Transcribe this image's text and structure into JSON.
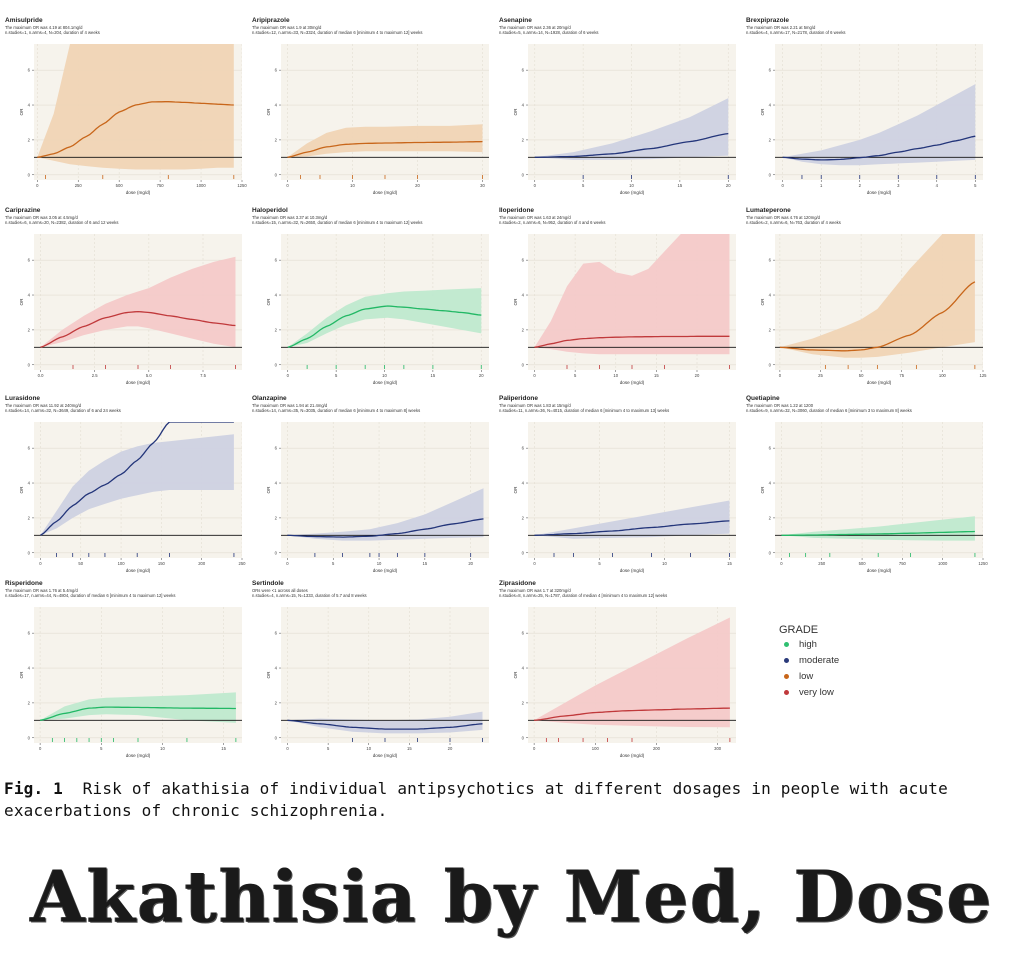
{
  "caption": {
    "fig_no": "Fig. 1",
    "text": "Risk of akathisia of individual antipsychotics at different dosages in people with acute exacerbations of chronic schizophrenia."
  },
  "banner": {
    "text": "Akathisia by Med, Dose"
  },
  "legend": {
    "title": "GRADE",
    "items": [
      {
        "label": "high",
        "color": "#2fbf71"
      },
      {
        "label": "moderate",
        "color": "#2a3a7a"
      },
      {
        "label": "low",
        "color": "#c8661a"
      },
      {
        "label": "very low",
        "color": "#c0393b"
      }
    ]
  },
  "colors": {
    "high": {
      "line": "#22b865",
      "band": "#bfe9cf"
    },
    "moderate": {
      "line": "#23357a",
      "band": "#cdd1e2"
    },
    "low": {
      "line": "#c8661a",
      "band": "#f0d4b5"
    },
    "very low": {
      "line": "#c0393b",
      "band": "#f4c9c9"
    },
    "panel_bg": "#f6f3ec"
  },
  "chart_data": [
    {
      "type": "line",
      "title": "Amisulpride",
      "subtitle1": "The maximum OR was 4.19 at 804.1mg/d",
      "subtitle2": "n.studies=1, n.arms=4, N=204, duration of 4 weeks",
      "grade": "low",
      "xlabel": "dose (mg/d)",
      "ylabel": "OR",
      "xlim": [
        -20,
        1250
      ],
      "ylim": [
        -0.3,
        7.5
      ],
      "xticks": [
        0,
        250,
        500,
        750,
        1000,
        1250
      ],
      "yticks": [
        0,
        2,
        4,
        6
      ],
      "x": [
        0,
        100,
        200,
        300,
        400,
        500,
        600,
        700,
        800,
        900,
        1000,
        1100,
        1200
      ],
      "y": [
        1,
        1.2,
        1.6,
        2.2,
        2.9,
        3.6,
        4.0,
        4.18,
        4.19,
        4.15,
        4.1,
        4.05,
        4.0
      ],
      "lower": [
        1,
        0.8,
        0.6,
        0.5,
        0.4,
        0.35,
        0.3,
        0.3,
        0.3,
        0.3,
        0.35,
        0.4,
        0.4
      ],
      "upper": [
        1,
        3.5,
        7.5,
        7.5,
        7.5,
        7.5,
        7.5,
        7.5,
        7.5,
        7.5,
        7.5,
        7.5,
        7.5
      ],
      "rug": [
        400,
        50,
        800,
        1200
      ]
    },
    {
      "type": "line",
      "title": "Aripiprazole",
      "subtitle1": "The maximum OR was 1.9 at 30mg/d",
      "subtitle2": "n.studies=12, n.arms=33, N=3324, duration of median 6 [minimum 4 to maximum 12] weeks",
      "grade": "low",
      "xlabel": "dose (mg/d)",
      "ylabel": "OR",
      "xlim": [
        -1,
        31
      ],
      "ylim": [
        -0.3,
        7.5
      ],
      "xticks": [
        0,
        10,
        20,
        30
      ],
      "yticks": [
        0,
        2,
        4,
        6
      ],
      "x": [
        0,
        3,
        6,
        9,
        12,
        15,
        20,
        25,
        30
      ],
      "y": [
        1,
        1.3,
        1.6,
        1.75,
        1.8,
        1.82,
        1.85,
        1.87,
        1.9
      ],
      "lower": [
        1,
        1.05,
        1.2,
        1.3,
        1.35,
        1.35,
        1.35,
        1.35,
        1.3
      ],
      "upper": [
        1,
        1.8,
        2.4,
        2.7,
        2.75,
        2.75,
        2.8,
        2.8,
        2.9
      ],
      "rug": [
        2,
        5,
        10,
        15,
        20,
        30
      ]
    },
    {
      "type": "line",
      "title": "Asenapine",
      "subtitle1": "The maximum OR was 2.36 at 20mg/d",
      "subtitle2": "n.studies=5, n.arms=14, N=1928, duration of 6 weeks",
      "grade": "moderate",
      "xlabel": "dose (mg/d)",
      "ylabel": "OR",
      "xlim": [
        -0.7,
        20.8
      ],
      "ylim": [
        -0.3,
        7.5
      ],
      "xticks": [
        0,
        5,
        10,
        15,
        20
      ],
      "yticks": [
        0,
        2,
        4,
        6
      ],
      "x": [
        0,
        4,
        8,
        12,
        16,
        20
      ],
      "y": [
        1,
        1.05,
        1.2,
        1.5,
        1.9,
        2.36
      ],
      "lower": [
        1,
        0.85,
        0.85,
        0.9,
        1.0,
        1.1
      ],
      "upper": [
        1,
        1.3,
        1.8,
        2.5,
        3.3,
        4.4
      ],
      "rug": [
        5,
        10,
        20
      ]
    },
    {
      "type": "line",
      "title": "Brexpiprazole",
      "subtitle1": "The maximum OR was 2.21 at 5mg/d",
      "subtitle2": "n.studies=4, n.arms=17, N=2178, duration of 6 weeks",
      "grade": "moderate",
      "xlabel": "dose (mg/d)",
      "ylabel": "OR",
      "xlim": [
        -0.2,
        5.2
      ],
      "ylim": [
        -0.3,
        7.5
      ],
      "xticks": [
        0,
        1,
        2,
        3,
        4,
        5
      ],
      "yticks": [
        0,
        2,
        4,
        6
      ],
      "x": [
        0,
        0.5,
        1,
        1.5,
        2,
        2.5,
        3,
        3.5,
        4,
        4.5,
        5
      ],
      "y": [
        1,
        0.9,
        0.85,
        0.88,
        0.98,
        1.1,
        1.3,
        1.5,
        1.7,
        1.95,
        2.21
      ],
      "lower": [
        1,
        0.75,
        0.6,
        0.55,
        0.55,
        0.6,
        0.65,
        0.7,
        0.75,
        0.8,
        0.85
      ],
      "upper": [
        1,
        1.2,
        1.4,
        1.7,
        2.0,
        2.4,
        2.9,
        3.4,
        4.0,
        4.6,
        5.2
      ],
      "rug": [
        0.5,
        1,
        2,
        3,
        4,
        5
      ]
    },
    {
      "type": "line",
      "title": "Cariprazine",
      "subtitle1": "The maximum OR was 3.05 at 4.5mg/d",
      "subtitle2": "n.studies=6, n.arms=20, N=2382, duration of 6 and 12 weeks",
      "grade": "very low",
      "xlabel": "dose (mg/d)",
      "ylabel": "OR",
      "xlim": [
        -0.3,
        9.3
      ],
      "ylim": [
        -0.3,
        7.5
      ],
      "xticks": [
        0,
        2.5,
        5,
        7.5
      ],
      "xticklabels": [
        "0.0",
        "2.5",
        "5.0",
        "7.5"
      ],
      "yticks": [
        0,
        2,
        4,
        6
      ],
      "x": [
        0,
        1,
        2,
        3,
        4,
        4.5,
        5,
        6,
        7,
        8,
        9
      ],
      "y": [
        1,
        1.6,
        2.2,
        2.7,
        3.0,
        3.05,
        3.0,
        2.8,
        2.6,
        2.4,
        2.25
      ],
      "lower": [
        1,
        1.3,
        1.7,
        2.0,
        2.2,
        2.2,
        2.1,
        1.8,
        1.5,
        1.2,
        1.0
      ],
      "upper": [
        1,
        2.0,
        2.8,
        3.5,
        4.0,
        4.2,
        4.4,
        5.0,
        5.5,
        5.9,
        6.2
      ],
      "rug": [
        1.5,
        3,
        4.5,
        6,
        9
      ]
    },
    {
      "type": "line",
      "title": "Haloperidol",
      "subtitle1": "The maximum OR was 3.37 at 10.3mg/d",
      "subtitle2": "n.studies=15, n.arms=32, N=2650, duration of median 6 [minimum 4 to maximum 12] weeks",
      "grade": "high",
      "xlabel": "dose (mg/d)",
      "ylabel": "OR",
      "xlim": [
        -0.7,
        20.8
      ],
      "ylim": [
        -0.3,
        7.5
      ],
      "xticks": [
        0,
        5,
        10,
        15,
        20
      ],
      "yticks": [
        0,
        2,
        4,
        6
      ],
      "x": [
        0,
        2,
        4,
        6,
        8,
        10.3,
        12,
        14,
        16,
        18,
        20
      ],
      "y": [
        1,
        1.5,
        2.2,
        2.8,
        3.2,
        3.37,
        3.3,
        3.2,
        3.1,
        3.0,
        2.85
      ],
      "lower": [
        1,
        1.25,
        1.8,
        2.3,
        2.6,
        2.7,
        2.6,
        2.4,
        2.2,
        2.0,
        1.8
      ],
      "upper": [
        1,
        1.8,
        2.7,
        3.4,
        3.9,
        4.1,
        4.2,
        4.25,
        4.3,
        4.35,
        4.4
      ],
      "rug": [
        2,
        5,
        8,
        10,
        12,
        15,
        20
      ]
    },
    {
      "type": "line",
      "title": "Iloperidone",
      "subtitle1": "The maximum OR was 1.63 at 24mg/d",
      "subtitle2": "n.studies=2, n.arms=6, N=952, duration of 4 and 6 weeks",
      "grade": "very low",
      "xlabel": "dose (mg/d)",
      "ylabel": "OR",
      "xlim": [
        -0.8,
        24.8
      ],
      "ylim": [
        -0.3,
        7.5
      ],
      "xticks": [
        0,
        5,
        10,
        15,
        20
      ],
      "yticks": [
        0,
        2,
        4,
        6
      ],
      "x": [
        0,
        2,
        4,
        6,
        8,
        10,
        12,
        14,
        16,
        18,
        20,
        24
      ],
      "y": [
        1,
        1.2,
        1.4,
        1.5,
        1.55,
        1.58,
        1.6,
        1.61,
        1.62,
        1.62,
        1.63,
        1.63
      ],
      "lower": [
        1,
        0.9,
        0.75,
        0.65,
        0.6,
        0.6,
        0.6,
        0.6,
        0.6,
        0.6,
        0.6,
        0.6
      ],
      "upper": [
        1,
        2.5,
        4.5,
        5.8,
        5.9,
        5.3,
        5.1,
        5.5,
        6.5,
        7.5,
        7.5,
        7.5
      ],
      "rug": [
        4,
        8,
        12,
        16,
        24
      ]
    },
    {
      "type": "line",
      "title": "Lumateperone",
      "subtitle1": "The maximum OR was 4.76 at 120mg/d",
      "subtitle2": "n.studies=2, n.arms=6, N=763, duration of 4 weeks",
      "grade": "low",
      "xlabel": "dose (mg/d)",
      "ylabel": "OR",
      "xlim": [
        -3,
        125
      ],
      "ylim": [
        -0.3,
        7.5
      ],
      "xticks": [
        0,
        25,
        50,
        75,
        100,
        125
      ],
      "yticks": [
        0,
        2,
        4,
        6
      ],
      "x": [
        0,
        20,
        40,
        50,
        60,
        80,
        100,
        120
      ],
      "y": [
        1,
        0.85,
        0.8,
        0.85,
        1.0,
        1.7,
        3.0,
        4.76
      ],
      "lower": [
        1,
        0.6,
        0.4,
        0.4,
        0.45,
        0.7,
        1.0,
        1.3
      ],
      "upper": [
        1,
        1.5,
        2.2,
        2.6,
        3.2,
        5.5,
        7.5,
        7.5
      ],
      "rug": [
        28,
        42,
        60,
        84,
        120
      ]
    },
    {
      "type": "line",
      "title": "Lurasidone",
      "subtitle1": "The maximum OR was 11.92 at 240mg/d",
      "subtitle2": "n.studies=14, n.arms=32, N=3649, duration of 6 and 24 weeks",
      "grade": "moderate",
      "xlabel": "dose (mg/d)",
      "ylabel": "OR",
      "xlim": [
        -8,
        250
      ],
      "ylim": [
        -0.3,
        7.5
      ],
      "xticks": [
        0,
        50,
        100,
        150,
        200,
        250
      ],
      "yticks": [
        0,
        2,
        4,
        6
      ],
      "x": [
        0,
        20,
        40,
        60,
        80,
        100,
        120,
        140,
        160,
        200,
        240
      ],
      "y": [
        1,
        1.8,
        2.7,
        3.4,
        3.9,
        4.5,
        5.3,
        6.3,
        7.5,
        7.5,
        7.5
      ],
      "lower": [
        1,
        1.4,
        2.0,
        2.5,
        2.8,
        3.1,
        3.3,
        3.5,
        3.6,
        3.6,
        3.6
      ],
      "upper": [
        1,
        2.4,
        3.8,
        4.7,
        5.3,
        5.8,
        6.1,
        6.3,
        6.4,
        6.6,
        6.8
      ],
      "rug": [
        20,
        40,
        60,
        80,
        120,
        160,
        240
      ]
    },
    {
      "type": "line",
      "title": "Olanzapine",
      "subtitle1": "The maximum OR was 1.94 at 21.4mg/d",
      "subtitle2": "n.studies=14, n.arms=35, N=3035, duration of median 6 [minimum 4 to maximum 8] weeks",
      "grade": "moderate",
      "xlabel": "dose (mg/d)",
      "ylabel": "OR",
      "xlim": [
        -0.7,
        22
      ],
      "ylim": [
        -0.3,
        7.5
      ],
      "xticks": [
        0,
        5,
        10,
        15,
        20
      ],
      "yticks": [
        0,
        2,
        4,
        6
      ],
      "x": [
        0,
        3,
        6,
        9,
        12,
        15,
        18,
        21.4
      ],
      "y": [
        1,
        0.93,
        0.9,
        0.95,
        1.1,
        1.35,
        1.65,
        1.94
      ],
      "lower": [
        1,
        0.8,
        0.7,
        0.7,
        0.75,
        0.8,
        0.85,
        0.9
      ],
      "upper": [
        1,
        1.1,
        1.2,
        1.35,
        1.7,
        2.2,
        2.9,
        3.7
      ],
      "rug": [
        3,
        6,
        9,
        10,
        12,
        15,
        20
      ]
    },
    {
      "type": "line",
      "title": "Paliperidone",
      "subtitle1": "The maximum OR was 1.83 at 15mg/d",
      "subtitle2": "n.studies=11, n.arms=36, N=4015, duration of median 6 [minimum 4 to maximum 13] weeks",
      "grade": "moderate",
      "xlabel": "dose (mg/d)",
      "ylabel": "OR",
      "xlim": [
        -0.5,
        15.5
      ],
      "ylim": [
        -0.3,
        7.5
      ],
      "xticks": [
        0,
        5,
        10,
        15
      ],
      "yticks": [
        0,
        2,
        4,
        6
      ],
      "x": [
        0,
        3,
        6,
        9,
        12,
        15
      ],
      "y": [
        1,
        1.1,
        1.25,
        1.45,
        1.65,
        1.83
      ],
      "lower": [
        1,
        0.8,
        0.85,
        0.9,
        1.0,
        1.1
      ],
      "upper": [
        1,
        1.4,
        1.8,
        2.2,
        2.6,
        3.0
      ],
      "rug": [
        1.5,
        3,
        6,
        9,
        12,
        15
      ]
    },
    {
      "type": "line",
      "title": "Quetiapine",
      "subtitle1": "The maximum OR was 1.22 at 1200",
      "subtitle2": "n.studies=9, n.arms=32, N=3060, duration of median 6 [minimum 3 to maximum 8] weeks",
      "grade": "high",
      "xlabel": "dose (mg/d)",
      "ylabel": "OR",
      "xlim": [
        -40,
        1250
      ],
      "ylim": [
        -0.3,
        7.5
      ],
      "xticks": [
        0,
        250,
        500,
        750,
        1000,
        1250
      ],
      "yticks": [
        0,
        2,
        4,
        6
      ],
      "x": [
        0,
        200,
        400,
        600,
        800,
        1000,
        1200
      ],
      "y": [
        1,
        1.02,
        1.05,
        1.08,
        1.12,
        1.17,
        1.22
      ],
      "lower": [
        1,
        0.85,
        0.8,
        0.75,
        0.72,
        0.7,
        0.7
      ],
      "upper": [
        1,
        1.2,
        1.35,
        1.5,
        1.7,
        1.9,
        2.1
      ],
      "rug": [
        50,
        150,
        300,
        600,
        800,
        1200
      ]
    },
    {
      "type": "line",
      "title": "Risperidone",
      "subtitle1": "The maximum OR was 1.76 at 5.4mg/d",
      "subtitle2": "n.studies=17, n.arms=44, N=4804, duration of median 6 [minimum 4 to maximum 12] weeks",
      "grade": "high",
      "xlabel": "dose (mg/d)",
      "ylabel": "OR",
      "xlim": [
        -0.5,
        16.5
      ],
      "ylim": [
        -0.3,
        7.5
      ],
      "xticks": [
        0,
        5,
        10,
        15
      ],
      "yticks": [
        0,
        2,
        4,
        6
      ],
      "x": [
        0,
        2,
        4,
        5.4,
        8,
        12,
        16
      ],
      "y": [
        1,
        1.4,
        1.7,
        1.76,
        1.74,
        1.7,
        1.68
      ],
      "lower": [
        1,
        1.1,
        1.3,
        1.35,
        1.3,
        1.0,
        0.85
      ],
      "upper": [
        1,
        1.8,
        2.2,
        2.3,
        2.35,
        2.45,
        2.6
      ],
      "rug": [
        1,
        2,
        3,
        4,
        5,
        6,
        8,
        12,
        16
      ]
    },
    {
      "type": "line",
      "title": "Sertindole",
      "subtitle1": "ORs were <1 across all doses",
      "subtitle2": "n.studies=4, n.arms=15, N=1333, duration of 5.7 and 8 weeks",
      "grade": "moderate",
      "xlabel": "dose (mg/d)",
      "ylabel": "OR",
      "xlim": [
        -0.8,
        24.8
      ],
      "ylim": [
        -0.3,
        7.5
      ],
      "xticks": [
        0,
        5,
        10,
        15,
        20
      ],
      "yticks": [
        0,
        2,
        4,
        6
      ],
      "x": [
        0,
        4,
        8,
        12,
        16,
        20,
        24
      ],
      "y": [
        1,
        0.8,
        0.6,
        0.5,
        0.5,
        0.6,
        0.8
      ],
      "lower": [
        1,
        0.6,
        0.35,
        0.25,
        0.25,
        0.3,
        0.45
      ],
      "upper": [
        1,
        1.1,
        1.05,
        1.0,
        1.05,
        1.2,
        1.5
      ],
      "rug": [
        8,
        12,
        16,
        20,
        24
      ]
    },
    {
      "type": "line",
      "title": "Ziprasidone",
      "subtitle1": "The maximum OR was 1.7 at 320mg/d",
      "subtitle2": "n.studies=8, n.arms=25, N=1787, duration of median 4 [minimum 4 to maximum 12] weeks",
      "grade": "very low",
      "xlabel": "dose (mg/d)",
      "ylabel": "OR",
      "xlim": [
        -10,
        330
      ],
      "ylim": [
        -0.3,
        7.5
      ],
      "xticks": [
        0,
        100,
        200,
        300
      ],
      "yticks": [
        0,
        2,
        4,
        6
      ],
      "x": [
        0,
        50,
        100,
        150,
        200,
        250,
        320
      ],
      "y": [
        1,
        1.25,
        1.45,
        1.55,
        1.6,
        1.65,
        1.7
      ],
      "lower": [
        1,
        0.85,
        0.75,
        0.7,
        0.65,
        0.62,
        0.6
      ],
      "upper": [
        1,
        2.0,
        3.0,
        3.9,
        4.8,
        5.7,
        6.9
      ],
      "rug": [
        20,
        40,
        80,
        120,
        160,
        320
      ]
    }
  ]
}
